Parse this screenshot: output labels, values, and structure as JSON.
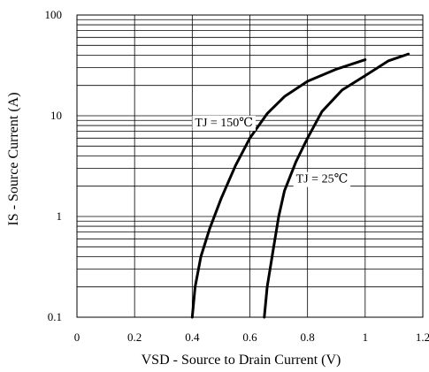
{
  "chart_data": {
    "type": "line",
    "xlabel": "VSD -  Source to Drain Current (V)",
    "ylabel": "IS - Source Current (A)",
    "xlim": [
      0,
      1.2
    ],
    "ylim": [
      0.1,
      100
    ],
    "yscale": "log",
    "grid": true,
    "x_ticks": [
      0,
      0.2,
      0.4,
      0.6,
      0.8,
      1,
      1.2
    ],
    "x_tick_labels": [
      "0",
      "0.2",
      "0.4",
      "0.6",
      "0.8",
      "1",
      "1.2"
    ],
    "y_ticks": [
      0.1,
      1,
      10,
      100
    ],
    "y_tick_labels": [
      "0.1",
      "1",
      "10",
      "100"
    ],
    "series": [
      {
        "name": "TJ = 150℃",
        "color": "#000000",
        "points": [
          [
            0.4,
            0.1
          ],
          [
            0.41,
            0.2
          ],
          [
            0.43,
            0.4
          ],
          [
            0.46,
            0.75
          ],
          [
            0.5,
            1.5
          ],
          [
            0.55,
            3.2
          ],
          [
            0.6,
            6.0
          ],
          [
            0.66,
            10.5
          ],
          [
            0.72,
            15.5
          ],
          [
            0.8,
            22
          ],
          [
            0.9,
            29
          ],
          [
            1.0,
            36
          ]
        ]
      },
      {
        "name": "TJ = 25℃",
        "color": "#000000",
        "points": [
          [
            0.65,
            0.1
          ],
          [
            0.66,
            0.2
          ],
          [
            0.68,
            0.45
          ],
          [
            0.7,
            1.0
          ],
          [
            0.72,
            1.8
          ],
          [
            0.76,
            3.5
          ],
          [
            0.8,
            6.0
          ],
          [
            0.85,
            11
          ],
          [
            0.92,
            18
          ],
          [
            1.0,
            25
          ],
          [
            1.08,
            35
          ],
          [
            1.15,
            41
          ]
        ]
      }
    ],
    "annotations": [
      {
        "text": "TJ = 150℃",
        "x": 0.51,
        "y": 8.7
      },
      {
        "text": "TJ = 25℃",
        "x": 0.85,
        "y": 2.4
      }
    ]
  }
}
